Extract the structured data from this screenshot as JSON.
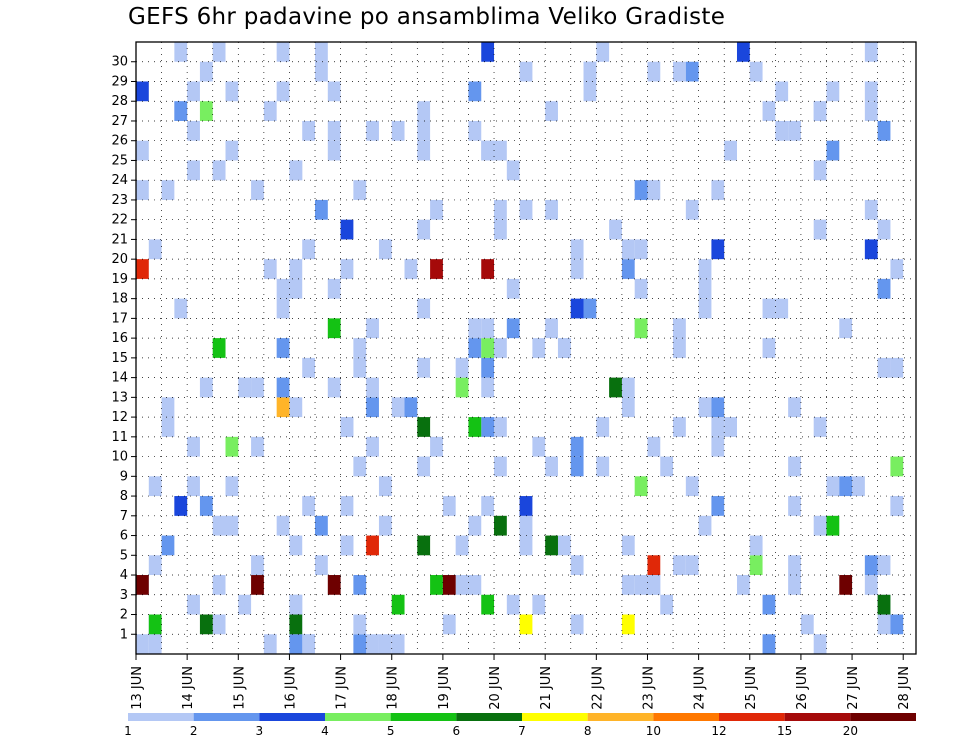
{
  "chart_data": {
    "type": "heatmap",
    "title": "GEFS 6hr padavine po ansamblima Veliko Gradiste",
    "xlabel": "",
    "ylabel": "",
    "x_ticks": [
      "13 JUN",
      "14 JUN",
      "15 JUN",
      "16 JUN",
      "17 JUN",
      "18 JUN",
      "19 JUN",
      "20 JUN",
      "21 JUN",
      "22 JUN",
      "23 JUN",
      "24 JUN",
      "25 JUN",
      "26 JUN",
      "27 JUN",
      "28 JUN"
    ],
    "y_ticks": [
      1,
      2,
      3,
      4,
      5,
      6,
      7,
      8,
      9,
      10,
      11,
      12,
      13,
      14,
      15,
      16,
      17,
      18,
      19,
      20,
      21,
      22,
      23,
      24,
      25,
      26,
      27,
      28,
      29,
      30
    ],
    "members": 31,
    "steps": 61,
    "grid": true,
    "legend_position": "bottom",
    "colorbar": {
      "labels": [
        "1",
        "2",
        "3",
        "4",
        "5",
        "6",
        "7",
        "8",
        "10",
        "12",
        "15",
        "20"
      ],
      "colors": [
        "#b4c8f5",
        "#6496ee",
        "#1a46dc",
        "#78ee60",
        "#14c214",
        "#08700e",
        "#ffff00",
        "#ffb428",
        "#ff7800",
        "#e02808",
        "#a50a0a",
        "#6e0000"
      ]
    },
    "cells": [
      {
        "row": 0,
        "cells": [
          [
            1,
            9
          ],
          [
            2,
            3
          ]
        ]
      },
      {
        "row": 1,
        "cells": [
          [
            1,
            8
          ],
          [
            2,
            1
          ],
          [
            5,
            1
          ],
          [
            6,
            2
          ],
          [
            7,
            2
          ]
        ]
      },
      {
        "row": 2,
        "cells": [
          [
            1,
            8
          ],
          [
            2,
            1
          ],
          [
            5,
            2
          ],
          [
            6,
            1
          ]
        ]
      },
      {
        "row": 3,
        "cells": [
          [
            1,
            11
          ],
          [
            2,
            1
          ],
          [
            5,
            1
          ],
          [
            15,
            5
          ]
        ]
      },
      {
        "row": 4,
        "cells": [
          [
            1,
            8
          ],
          [
            2,
            1
          ],
          [
            4,
            1
          ],
          [
            10,
            1
          ]
        ]
      },
      {
        "row": 5,
        "cells": [
          [
            1,
            8
          ],
          [
            2,
            1
          ],
          [
            6,
            2
          ],
          [
            10,
            1
          ]
        ]
      },
      {
        "row": 6,
        "cells": [
          [
            1,
            8
          ],
          [
            2,
            1
          ],
          [
            5,
            1
          ],
          [
            6,
            1
          ]
        ]
      },
      {
        "row": 7,
        "cells": [
          [
            1,
            8
          ],
          [
            2,
            2
          ],
          [
            3,
            2
          ]
        ]
      },
      {
        "row": 8,
        "cells": [
          [
            1,
            7
          ],
          [
            2,
            1
          ],
          [
            4,
            1
          ]
        ]
      },
      {
        "row": 9,
        "cells": [
          [
            1,
            7
          ],
          [
            2,
            1
          ],
          [
            4,
            1
          ]
        ]
      },
      {
        "row": 10,
        "cells": [
          [
            1,
            7
          ],
          [
            2,
            1
          ],
          [
            4,
            1
          ]
        ]
      },
      {
        "row": 11,
        "cells": [
          [
            1,
            9
          ],
          [
            2,
            1
          ],
          [
            5,
            1
          ],
          [
            6,
            1
          ]
        ]
      },
      {
        "row": 12,
        "cells": [
          [
            1,
            6
          ],
          [
            2,
            3
          ],
          [
            8,
            1
          ]
        ]
      },
      {
        "row": 13,
        "cells": [
          [
            1,
            7
          ],
          [
            2,
            1
          ],
          [
            4,
            1
          ],
          [
            6,
            1
          ]
        ]
      },
      {
        "row": 14,
        "cells": [
          [
            1,
            6
          ],
          [
            2,
            1
          ]
        ]
      },
      {
        "row": 15,
        "cells": [
          [
            1,
            7
          ],
          [
            2,
            2
          ],
          [
            4,
            1
          ],
          [
            5,
            1
          ]
        ]
      },
      {
        "row": 16,
        "cells": [
          [
            1,
            7
          ],
          [
            2,
            1
          ],
          [
            4,
            1
          ],
          [
            5,
            1
          ]
        ]
      },
      {
        "row": 17,
        "cells": [
          [
            1,
            6
          ],
          [
            2,
            1
          ],
          [
            3,
            1
          ]
        ]
      },
      {
        "row": 18,
        "cells": [
          [
            1,
            7
          ],
          [
            2,
            1
          ]
        ]
      },
      {
        "row": 19,
        "cells": [
          [
            1,
            7
          ],
          [
            2,
            1
          ],
          [
            10,
            1
          ],
          [
            11,
            2
          ]
        ]
      },
      {
        "row": 20,
        "cells": [
          [
            1,
            6
          ],
          [
            3,
            2
          ]
        ]
      },
      {
        "row": 21,
        "cells": [
          [
            1,
            5
          ],
          [
            3,
            1
          ]
        ]
      },
      {
        "row": 22,
        "cells": [
          [
            1,
            6
          ],
          [
            2,
            1
          ]
        ]
      },
      {
        "row": 23,
        "cells": [
          [
            1,
            6
          ],
          [
            2,
            1
          ]
        ]
      },
      {
        "row": 24,
        "cells": [
          [
            1,
            7
          ]
        ]
      },
      {
        "row": 25,
        "cells": [
          [
            1,
            8
          ],
          [
            2,
            1
          ]
        ]
      },
      {
        "row": 26,
        "cells": [
          [
            1,
            9
          ],
          [
            2,
            1
          ]
        ]
      },
      {
        "row": 27,
        "cells": [
          [
            1,
            8
          ],
          [
            2,
            1
          ],
          [
            4,
            1
          ]
        ]
      },
      {
        "row": 28,
        "cells": [
          [
            1,
            8
          ],
          [
            2,
            1
          ],
          [
            3,
            1
          ]
        ]
      },
      {
        "row": 29,
        "cells": [
          [
            1,
            8
          ],
          [
            2,
            1
          ]
        ]
      },
      {
        "row": 30,
        "cells": [
          [
            1,
            6
          ],
          [
            3,
            2
          ]
        ]
      }
    ]
  }
}
